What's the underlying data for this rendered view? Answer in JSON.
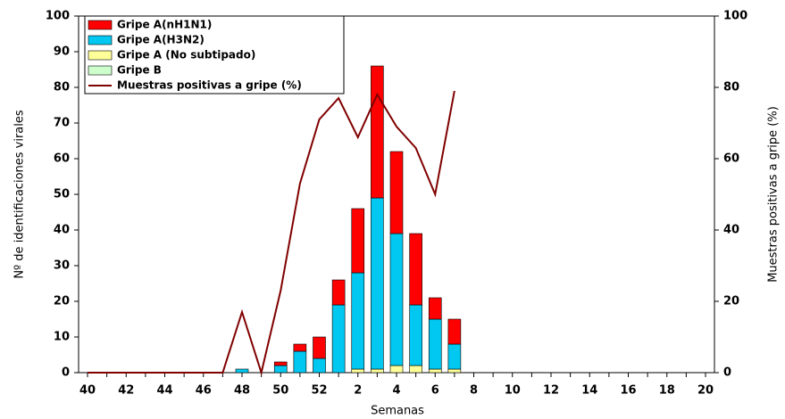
{
  "chart_data": {
    "type": "bar",
    "stacked": true,
    "categories": [
      "40",
      null,
      "42",
      null,
      "44",
      null,
      "46",
      null,
      "48",
      null,
      "50",
      null,
      "52",
      null,
      "2",
      null,
      "4",
      null,
      "6",
      null,
      "8",
      null,
      "10",
      null,
      "12",
      null,
      "14",
      null,
      "16",
      null,
      "18",
      null,
      "20"
    ],
    "series": [
      {
        "name": "Gripe A(nH1N1)",
        "color": "#ff0000",
        "values": [
          0,
          0,
          0,
          0,
          0,
          0,
          0,
          0,
          0,
          0,
          1,
          2,
          6,
          7,
          18,
          37,
          23,
          20,
          6,
          7,
          null,
          null,
          null,
          null,
          null,
          null,
          null,
          null,
          null,
          null,
          null,
          null,
          null
        ]
      },
      {
        "name": "Gripe A(H3N2)",
        "color": "#00c8f0",
        "values": [
          0,
          0,
          0,
          0,
          0,
          0,
          0,
          0,
          1,
          0,
          2,
          6,
          4,
          19,
          27,
          48,
          37,
          17,
          14,
          7,
          null,
          null,
          null,
          null,
          null,
          null,
          null,
          null,
          null,
          null,
          null,
          null,
          null
        ]
      },
      {
        "name": "Gripe A (No subtipado)",
        "color": "#ffff99",
        "values": [
          0,
          0,
          0,
          0,
          0,
          0,
          0,
          0,
          0,
          0,
          0,
          0,
          0,
          0,
          1,
          1,
          2,
          2,
          1,
          1,
          null,
          null,
          null,
          null,
          null,
          null,
          null,
          null,
          null,
          null,
          null,
          null,
          null
        ]
      },
      {
        "name": "Gripe B",
        "color": "#ccffcc",
        "values": [
          0,
          0,
          0,
          0,
          0,
          0,
          0,
          0,
          0,
          0,
          0,
          0,
          0,
          0,
          0,
          0,
          0,
          0,
          0,
          0,
          null,
          null,
          null,
          null,
          null,
          null,
          null,
          null,
          null,
          null,
          null,
          null,
          null
        ]
      },
      {
        "name": "Muestras positivas a gripe (%)",
        "color": "#800000",
        "type": "line",
        "axis": "y2",
        "values": [
          0,
          0,
          0,
          0,
          0,
          0,
          0,
          0,
          17,
          0,
          23,
          53,
          71,
          77,
          66,
          78,
          69,
          63,
          50,
          79,
          null,
          null,
          null,
          null,
          null,
          null,
          null,
          null,
          null,
          null,
          null,
          null,
          null
        ]
      }
    ],
    "x_label": "Semanas",
    "y_label": "Nº de identificaciones virales",
    "y2_label": "Muestras positivas a gripe (%)",
    "ylim": [
      0,
      100
    ],
    "yticks": [
      0,
      10,
      20,
      30,
      40,
      50,
      60,
      70,
      80,
      90,
      100
    ],
    "y2lim": [
      0,
      100
    ],
    "y2ticks": [
      0,
      20,
      40,
      60,
      80,
      100
    ],
    "legend": "upper-left"
  }
}
